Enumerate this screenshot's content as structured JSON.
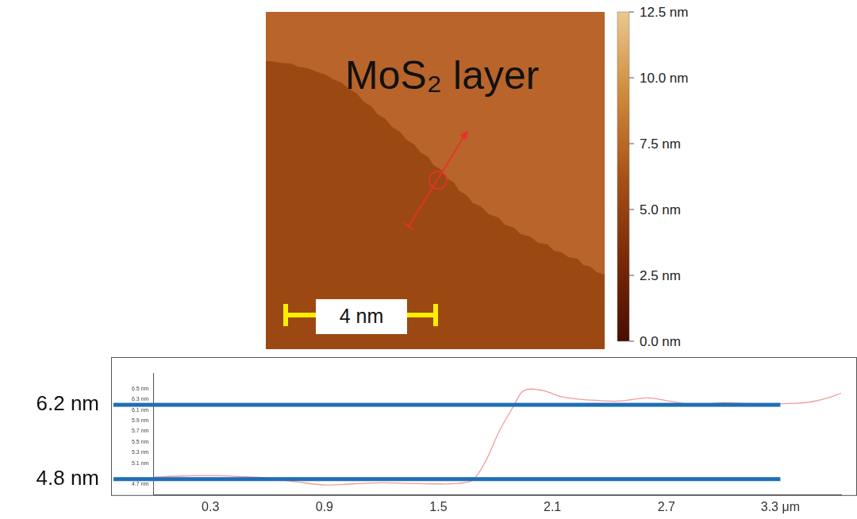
{
  "image": {
    "label": "MoS₂ layer",
    "scale_bar": "4 nm",
    "colorbar": {
      "range": [
        0,
        12.5
      ],
      "ticks": [
        {
          "value": 12.5,
          "label": "12.5 nm"
        },
        {
          "value": 10.0,
          "label": "10.0 nm"
        },
        {
          "value": 7.5,
          "label": "7.5 nm"
        },
        {
          "value": 5.0,
          "label": "5.0 nm"
        },
        {
          "value": 2.5,
          "label": "2.5 nm"
        },
        {
          "value": 0.0,
          "label": "0.0 nm"
        }
      ]
    }
  },
  "chart_data": {
    "type": "line",
    "color": "#f29b9b",
    "grid": false,
    "x": [
      0,
      0.15,
      0.3,
      0.45,
      0.6,
      0.75,
      0.9,
      1.05,
      1.2,
      1.35,
      1.5,
      1.6,
      1.68,
      1.75,
      1.82,
      1.9,
      1.95,
      2.05,
      2.15,
      2.3,
      2.45,
      2.6,
      2.7,
      2.85,
      3.0,
      3.15,
      3.3,
      3.45,
      3.55,
      3.62
    ],
    "values": [
      4.84,
      4.86,
      4.87,
      4.85,
      4.82,
      4.75,
      4.69,
      4.71,
      4.73,
      4.72,
      4.71,
      4.72,
      4.78,
      5.15,
      5.7,
      6.2,
      6.47,
      6.47,
      6.35,
      6.29,
      6.27,
      6.33,
      6.28,
      6.2,
      6.24,
      6.22,
      6.22,
      6.25,
      6.33,
      6.42
    ],
    "xlim": [
      0,
      3.62
    ],
    "ylim": [
      4.5,
      6.8
    ],
    "xticks": [
      0.3,
      0.9,
      1.5,
      2.1,
      2.7,
      {
        "value": 3.3,
        "label": "3.3 μm"
      }
    ],
    "yticks": [
      {
        "value": 6.5,
        "label": "6.5 nm"
      },
      {
        "value": 6.3,
        "label": "6.3 nm"
      },
      {
        "value": 6.1,
        "label": "6.1 nm"
      },
      {
        "value": 5.9,
        "label": "5.9 nm"
      },
      {
        "value": 5.7,
        "label": "5.7 nm"
      },
      {
        "value": 5.5,
        "label": "5.5 nm"
      },
      {
        "value": 5.3,
        "label": "5.3 nm"
      },
      {
        "value": 5.1,
        "label": "5.1 nm"
      },
      {
        "value": 4.7,
        "label": "4.7 nm"
      }
    ],
    "annotations": [
      {
        "y": 6.2,
        "label": "6.2 nm"
      },
      {
        "y": 4.8,
        "label": "4.8 nm"
      }
    ]
  }
}
